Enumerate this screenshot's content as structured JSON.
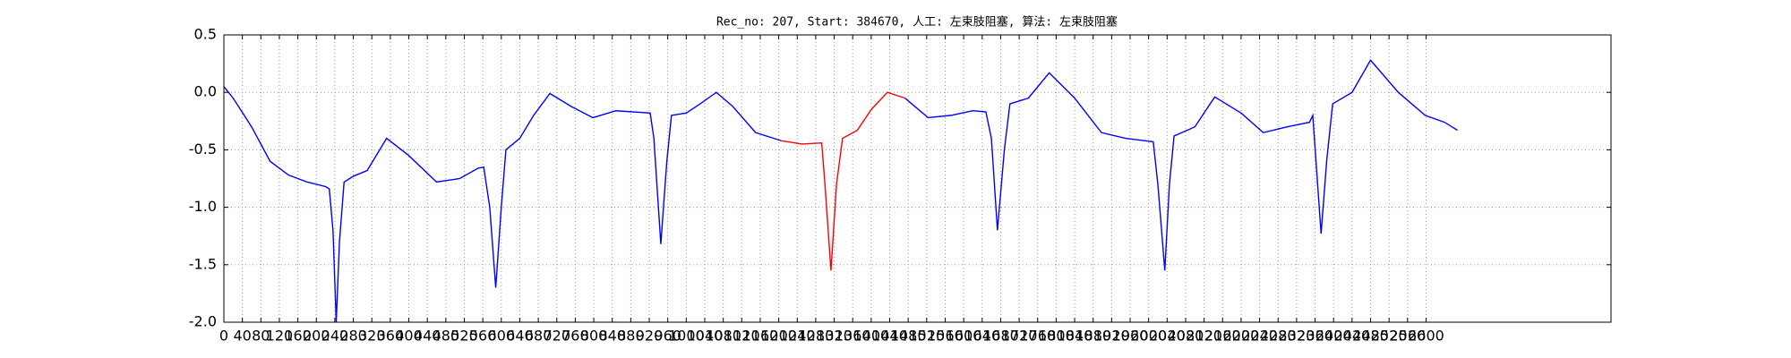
{
  "chart_data": {
    "type": "line",
    "title": "Rec_no: 207, Start: 384670, 人工: 左束肢阻塞, 算法: 左束肢阻塞",
    "x": [
      0,
      20,
      60,
      100,
      140,
      180,
      220,
      228,
      236,
      243,
      250,
      260,
      280,
      310,
      352,
      400,
      460,
      510,
      550,
      562,
      575,
      588,
      600,
      610,
      640,
      670,
      705,
      750,
      798,
      848,
      922,
      930,
      945,
      958,
      968,
      1000,
      1030,
      1065,
      1100,
      1150,
      1205,
      1250,
      1293,
      1300,
      1313,
      1325,
      1338,
      1370,
      1400,
      1435,
      1473,
      1523,
      1573,
      1620,
      1648,
      1660,
      1673,
      1688,
      1700,
      1740,
      1785,
      1840,
      1898,
      1950,
      2010,
      2020,
      2035,
      2045,
      2055,
      2100,
      2143,
      2200,
      2248,
      2300,
      2348,
      2355,
      2373,
      2385,
      2398,
      2440,
      2480,
      2540,
      2598,
      2640,
      2668
    ],
    "series": [
      {
        "color": "#0000ff",
        "values": [
          0.05,
          -0.05,
          -0.3,
          -0.6,
          -0.72,
          -0.78,
          -0.82,
          -0.84,
          -1.2,
          -2.0,
          -1.3,
          -0.78,
          -0.73,
          -0.68,
          -0.4,
          -0.55,
          -0.78,
          -0.75,
          -0.66,
          -0.65,
          -1.0,
          -1.7,
          -1.0,
          -0.5,
          -0.4,
          -0.2,
          -0.01,
          -0.12,
          -0.22,
          -0.16,
          -0.18,
          -0.4,
          -1.32,
          -0.6,
          -0.2,
          -0.18,
          -0.1,
          0.0,
          -0.12,
          -0.35,
          -0.42,
          null,
          null,
          null,
          null,
          null,
          null,
          null,
          null,
          null,
          -0.05,
          -0.22,
          -0.2,
          -0.16,
          -0.17,
          -0.4,
          -1.2,
          -0.5,
          -0.1,
          -0.05,
          0.17,
          -0.05,
          -0.35,
          -0.4,
          -0.43,
          -0.8,
          -1.55,
          -0.8,
          -0.38,
          -0.3,
          -0.04,
          -0.18,
          -0.35,
          -0.3,
          -0.26,
          -0.2,
          -1.23,
          -0.6,
          -0.1,
          0.0,
          0.28,
          0.0,
          -0.2,
          -0.26,
          -0.33
        ]
      },
      {
        "color": "#ff0000",
        "values": [
          null,
          null,
          null,
          null,
          null,
          null,
          null,
          null,
          null,
          null,
          null,
          null,
          null,
          null,
          null,
          null,
          null,
          null,
          null,
          null,
          null,
          null,
          null,
          null,
          null,
          null,
          null,
          null,
          null,
          null,
          null,
          null,
          null,
          null,
          null,
          null,
          null,
          null,
          null,
          null,
          -0.42,
          -0.45,
          -0.44,
          -0.8,
          -1.55,
          -0.8,
          -0.4,
          -0.33,
          -0.15,
          0.0,
          -0.05,
          null,
          null,
          null,
          null,
          null,
          null,
          null,
          null,
          null,
          null,
          null,
          null,
          null,
          null,
          null,
          null,
          null,
          null,
          null,
          null,
          null,
          null,
          null,
          null,
          null,
          null,
          null,
          null,
          null,
          null,
          null,
          null,
          null,
          null
        ]
      }
    ],
    "xlim": [
      0,
      3000
    ],
    "xticks": [
      0,
      40,
      80,
      120,
      160,
      200,
      240,
      280,
      320,
      360,
      400,
      440,
      480,
      520,
      560,
      600,
      640,
      680,
      720,
      760,
      800,
      840,
      880,
      920,
      960,
      1000,
      1040,
      1080,
      1120,
      1160,
      1200,
      1240,
      1280,
      1320,
      1360,
      1400,
      1440,
      1480,
      1520,
      1560,
      1600,
      1640,
      1680,
      1720,
      1760,
      1800,
      1840,
      1880,
      1920,
      1960,
      2000,
      2040,
      2080,
      2120,
      2160,
      2200,
      2240,
      2280,
      2320,
      2360,
      2400,
      2440,
      2480,
      2520,
      2560,
      2600
    ],
    "ylim": [
      -2.0,
      0.5
    ],
    "yticks": [
      {
        "value": -2.0,
        "label": "-2.0"
      },
      -1.5,
      {
        "value": -1.0,
        "label": "-1.0"
      },
      -0.5,
      {
        "value": 0.0,
        "label": "0.0"
      },
      0.5
    ],
    "grid": true
  }
}
